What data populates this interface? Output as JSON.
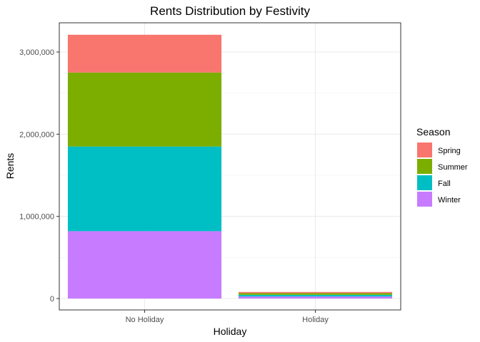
{
  "chart_data": {
    "type": "bar",
    "stacked": true,
    "title": "Rents Distribution by Festivity",
    "xlabel": "Holiday",
    "ylabel": "Rents",
    "categories": [
      "No Holiday",
      "Holiday"
    ],
    "ylim": [
      0,
      3400000
    ],
    "yticks": [
      0,
      1000000,
      2000000,
      3000000
    ],
    "ytick_labels": [
      "0",
      "1,000,000",
      "2,000,000",
      "3,000,000"
    ],
    "grid": true,
    "legend": {
      "title": "Season",
      "position": "right"
    },
    "series": [
      {
        "name": "Winter",
        "color": "#C77CFF",
        "values": [
          820000,
          25000
        ]
      },
      {
        "name": "Fall",
        "color": "#00BFC4",
        "values": [
          1030000,
          20000
        ]
      },
      {
        "name": "Summer",
        "color": "#7CAE00",
        "values": [
          900000,
          20000
        ]
      },
      {
        "name": "Spring",
        "color": "#F8766D",
        "values": [
          460000,
          15000
        ]
      }
    ],
    "legend_order": [
      "Spring",
      "Summer",
      "Fall",
      "Winter"
    ]
  }
}
